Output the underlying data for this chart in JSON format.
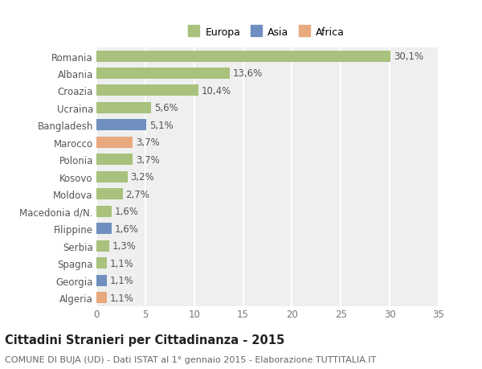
{
  "categories": [
    "Romania",
    "Albania",
    "Croazia",
    "Ucraina",
    "Bangladesh",
    "Marocco",
    "Polonia",
    "Kosovo",
    "Moldova",
    "Macedonia d/N.",
    "Filippine",
    "Serbia",
    "Spagna",
    "Georgia",
    "Algeria"
  ],
  "values": [
    30.1,
    13.6,
    10.4,
    5.6,
    5.1,
    3.7,
    3.7,
    3.2,
    2.7,
    1.6,
    1.6,
    1.3,
    1.1,
    1.1,
    1.1
  ],
  "labels": [
    "30,1%",
    "13,6%",
    "10,4%",
    "5,6%",
    "5,1%",
    "3,7%",
    "3,7%",
    "3,2%",
    "2,7%",
    "1,6%",
    "1,6%",
    "1,3%",
    "1,1%",
    "1,1%",
    "1,1%"
  ],
  "continents": [
    "Europa",
    "Europa",
    "Europa",
    "Europa",
    "Asia",
    "Africa",
    "Europa",
    "Europa",
    "Europa",
    "Europa",
    "Asia",
    "Europa",
    "Europa",
    "Asia",
    "Africa"
  ],
  "colors": {
    "Europa": "#a8c17c",
    "Asia": "#6e8fbf",
    "Africa": "#e8a97e"
  },
  "xlim": [
    0,
    35
  ],
  "xticks": [
    0,
    5,
    10,
    15,
    20,
    25,
    30,
    35
  ],
  "title": "Cittadini Stranieri per Cittadinanza - 2015",
  "subtitle": "COMUNE DI BUJA (UD) - Dati ISTAT al 1° gennaio 2015 - Elaborazione TUTTITALIA.IT",
  "background_color": "#ffffff",
  "plot_background": "#efefef",
  "grid_color": "#ffffff",
  "bar_height": 0.65,
  "title_fontsize": 10.5,
  "subtitle_fontsize": 8,
  "tick_fontsize": 8.5,
  "label_fontsize": 8.5,
  "legend_fontsize": 9
}
